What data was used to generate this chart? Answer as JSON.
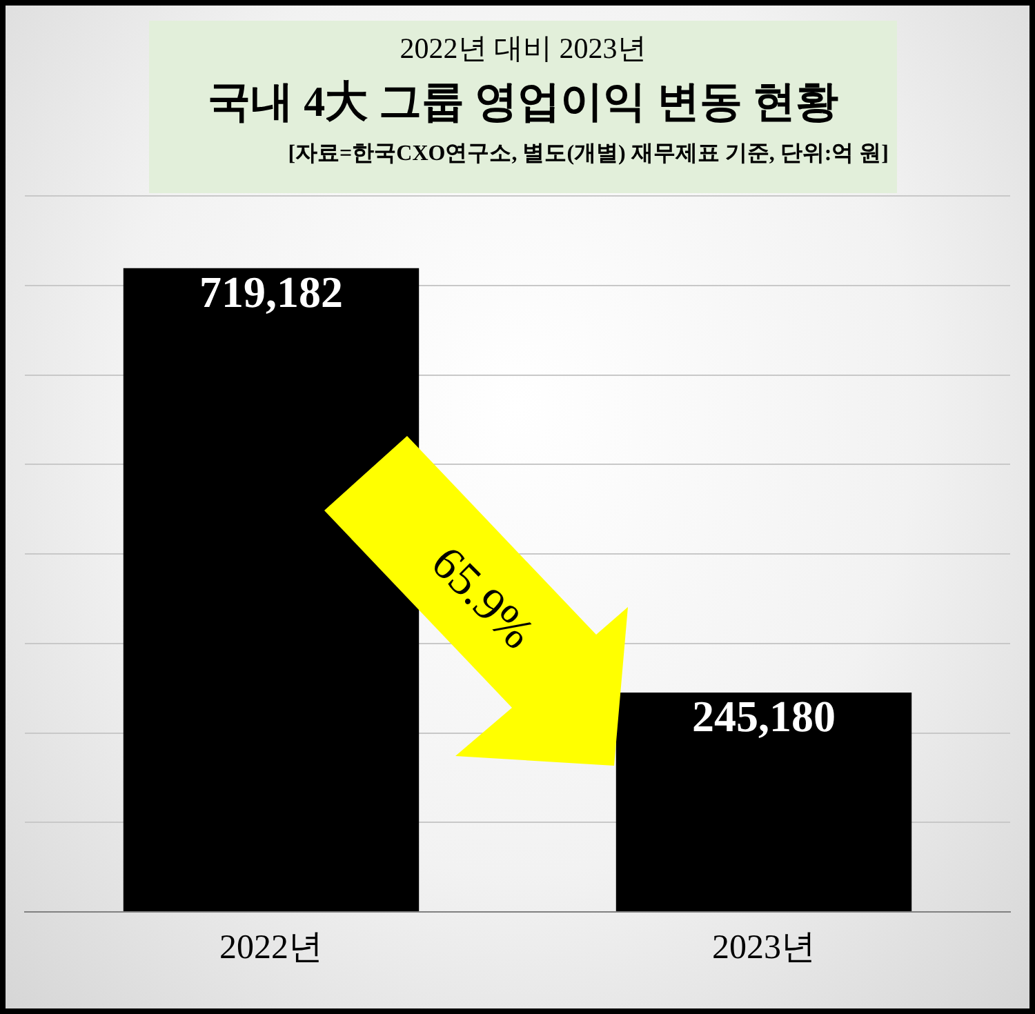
{
  "chart_data": {
    "type": "bar",
    "title": "국내 4大 그룹 영업이익 변동 현황",
    "subtitle": "2022년 대비 2023년",
    "annotations": [
      "[자료=한국CXO연구소, 별도(개별) 재무제표 기준, 단위:억 원]",
      "65.9%"
    ],
    "categories": [
      "2022년",
      "2023년"
    ],
    "values": [
      719182,
      245180
    ],
    "color": "#000000",
    "value_labels": [
      "719,182",
      "245,180"
    ],
    "grid": "y",
    "tick_labels": "x",
    "legend": false
  }
}
